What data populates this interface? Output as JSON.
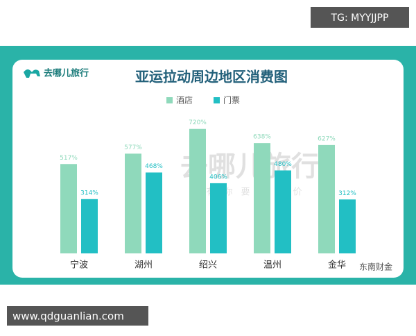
{
  "tag": "TG: MYYJJPP",
  "logo": "去哪儿旅行",
  "watermark": {
    "brand": "去哪儿旅行",
    "slogan": "总有你要的低价"
  },
  "credit": "东南财金",
  "source": "www.qdguanlian.com",
  "chart_data": {
    "type": "bar",
    "title": "亚运拉动周边地区消费图",
    "categories": [
      "宁波",
      "湖州",
      "绍兴",
      "温州",
      "金华"
    ],
    "series": [
      {
        "name": "酒店",
        "color": "#8fd9bb",
        "values": [
          517,
          577,
          720,
          638,
          627
        ],
        "value_labels": [
          "517%",
          "577%",
          "720%",
          "638%",
          "627%"
        ]
      },
      {
        "name": "门票",
        "color": "#22bfc4",
        "values": [
          314,
          468,
          406,
          480,
          312
        ],
        "value_labels": [
          "314%",
          "468%",
          "406%",
          "480%",
          "312%"
        ]
      }
    ]
  }
}
